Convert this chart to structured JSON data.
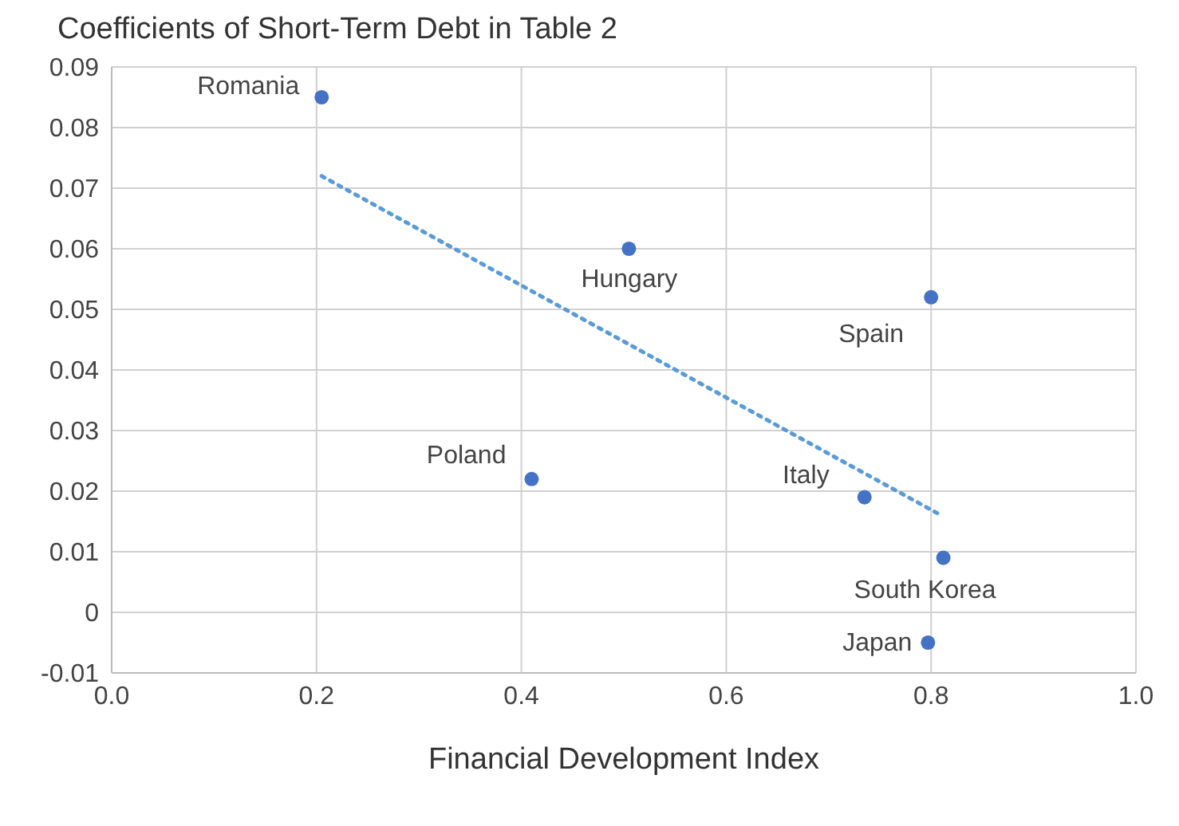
{
  "chart_data": {
    "type": "scatter",
    "title": "Coefficients of Short-Term Debt in Table 2",
    "xlabel": "Financial Development Index",
    "xlim": [
      0,
      1
    ],
    "xticks": [
      {
        "value": 0,
        "label": "0.0"
      },
      {
        "value": 0.2,
        "label": "0.2"
      },
      {
        "value": 0.4,
        "label": "0.4"
      },
      {
        "value": 0.6,
        "label": "0.6"
      },
      {
        "value": 0.8,
        "label": "0.8"
      },
      {
        "value": 1,
        "label": "1.0"
      }
    ],
    "ylim": [
      -0.01,
      0.09
    ],
    "yticks": [
      -0.01,
      0,
      0.01,
      0.02,
      0.03,
      0.04,
      0.05,
      0.06,
      0.07,
      0.08,
      0.09
    ],
    "grid": true,
    "legend": false,
    "series": [
      {
        "color": "#4472c4",
        "marker": "circle",
        "x": [
          0.205,
          0.505,
          0.8,
          0.41,
          0.735,
          0.812,
          0.797
        ],
        "values": [
          0.085,
          0.06,
          0.052,
          0.022,
          0.019,
          0.009,
          -0.005
        ]
      },
      {
        "type": "line",
        "color": "#5b9bd5",
        "marker": "none",
        "line_style": "dotted",
        "x": [
          0.205,
          0.81
        ],
        "values": [
          0.072,
          0.016
        ]
      }
    ],
    "annotations": [
      {
        "text": "Romania",
        "x": 0.205,
        "y": 0.085
      },
      {
        "text": "Hungary",
        "x": 0.505,
        "y": 0.06
      },
      {
        "text": "Spain",
        "x": 0.8,
        "y": 0.052
      },
      {
        "text": "Poland",
        "x": 0.41,
        "y": 0.022
      },
      {
        "text": "Italy",
        "x": 0.735,
        "y": 0.019
      },
      {
        "text": "South Korea",
        "x": 0.812,
        "y": 0.009
      },
      {
        "text": "Japan",
        "x": 0.797,
        "y": -0.005
      }
    ]
  }
}
